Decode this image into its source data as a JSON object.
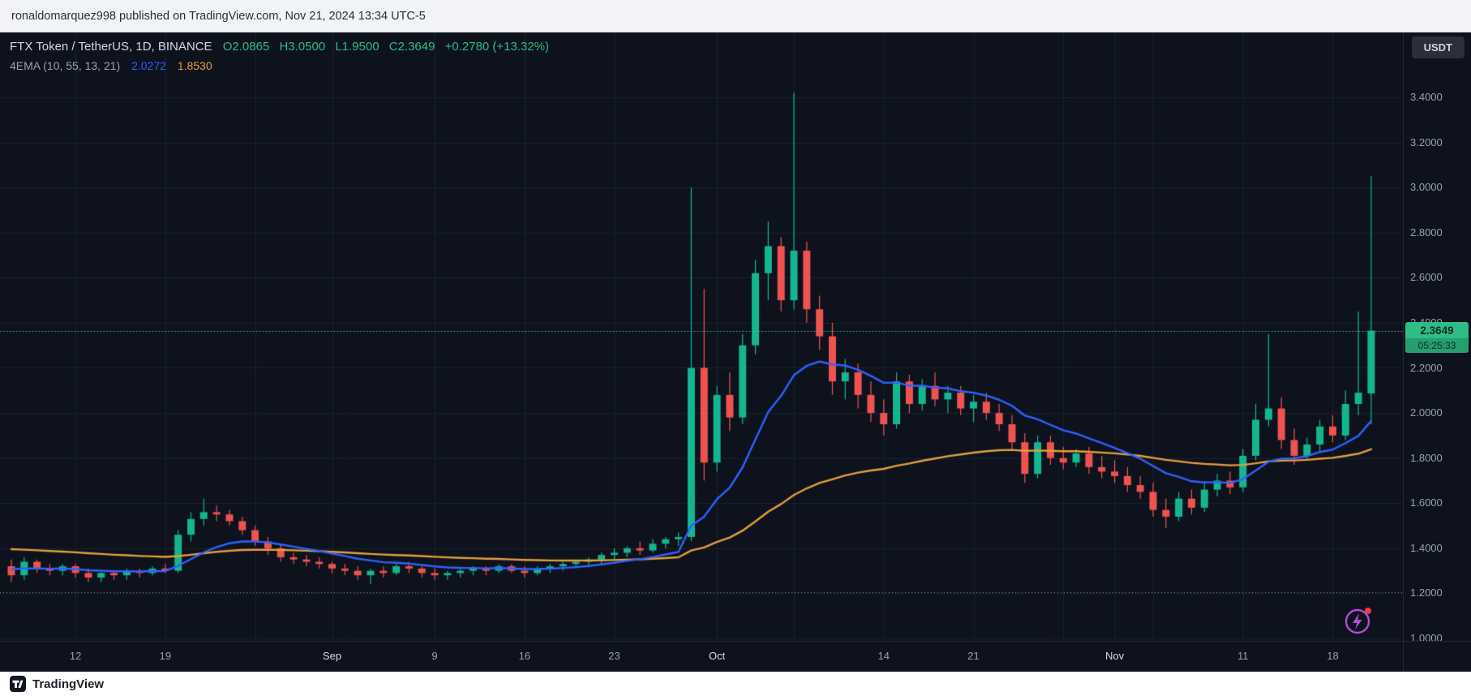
{
  "header": {
    "text": "ronaldomarquez998 published on TradingView.com, Nov 21, 2024 13:34 UTC-5"
  },
  "footer": {
    "brand": "TradingView"
  },
  "toolbar": {
    "currency_button": "USDT"
  },
  "legend": {
    "title": "FTX Token / TetherUS, 1D, BINANCE",
    "ohlc": {
      "o": "O2.0865",
      "h": "H3.0500",
      "l": "L1.9500",
      "c": "C2.3649",
      "change": "+0.2780 (+13.32%)"
    },
    "indicator": {
      "name": "4EMA (10, 55, 13, 21)",
      "fast_value": "2.0272",
      "slow_value": "1.8530"
    }
  },
  "chart_data": {
    "type": "candlestick",
    "title": "FTX Token / TetherUS, 1D, BINANCE",
    "last_price": 2.3649,
    "last_price_label": "2.3649",
    "countdown": "05:25:33",
    "dotted_line": 1.205,
    "ylim": [
      1.0,
      3.4
    ],
    "y_ticks": [
      {
        "v": 3.4,
        "t": "3.4000"
      },
      {
        "v": 3.2,
        "t": "3.2000"
      },
      {
        "v": 3.0,
        "t": "3.0000"
      },
      {
        "v": 2.8,
        "t": "2.8000"
      },
      {
        "v": 2.6,
        "t": "2.6000"
      },
      {
        "v": 2.4,
        "t": "2.4000"
      },
      {
        "v": 2.2,
        "t": "2.2000"
      },
      {
        "v": 2.0,
        "t": "2.0000"
      },
      {
        "v": 1.8,
        "t": "1.8000"
      },
      {
        "v": 1.6,
        "t": "1.6000"
      },
      {
        "v": 1.4,
        "t": "1.4000"
      },
      {
        "v": 1.2,
        "t": "1.2000"
      },
      {
        "v": 1.0,
        "t": "1.0000"
      }
    ],
    "x_ticks": [
      {
        "d": 5,
        "t": "12",
        "major": false
      },
      {
        "d": 12,
        "t": "19",
        "major": false
      },
      {
        "d": 25,
        "t": "Sep",
        "major": true
      },
      {
        "d": 33,
        "t": "9",
        "major": false
      },
      {
        "d": 40,
        "t": "16",
        "major": false
      },
      {
        "d": 47,
        "t": "23",
        "major": false
      },
      {
        "d": 55,
        "t": "Oct",
        "major": true
      },
      {
        "d": 68,
        "t": "14",
        "major": false
      },
      {
        "d": 75,
        "t": "21",
        "major": false
      },
      {
        "d": 86,
        "t": "Nov",
        "major": true
      },
      {
        "d": 96,
        "t": "11",
        "major": false
      },
      {
        "d": 103,
        "t": "18",
        "major": false
      }
    ],
    "x_grid_extra": [
      19,
      61,
      82,
      89
    ],
    "emas": {
      "fast_period": 13,
      "slow_period": 55,
      "fast_seed": 1.31,
      "slow_seed": 1.4
    },
    "colors": {
      "up": "#14b690",
      "down": "#ef5350",
      "fast_ema": "#2f62ff",
      "slow_ema": "#e59e3c",
      "grid": "#1b2130",
      "bg": "#0d121d",
      "dotted": "#8a90a0",
      "badge_bg": "#2ebd85"
    },
    "candles": [
      [
        1.32,
        1.35,
        1.25,
        1.28
      ],
      [
        1.28,
        1.36,
        1.26,
        1.34
      ],
      [
        1.34,
        1.35,
        1.29,
        1.31
      ],
      [
        1.31,
        1.33,
        1.28,
        1.3
      ],
      [
        1.3,
        1.33,
        1.28,
        1.32
      ],
      [
        1.32,
        1.33,
        1.27,
        1.29
      ],
      [
        1.29,
        1.31,
        1.25,
        1.27
      ],
      [
        1.27,
        1.3,
        1.25,
        1.29
      ],
      [
        1.29,
        1.3,
        1.26,
        1.28
      ],
      [
        1.28,
        1.31,
        1.26,
        1.3
      ],
      [
        1.3,
        1.31,
        1.27,
        1.29
      ],
      [
        1.29,
        1.32,
        1.28,
        1.31
      ],
      [
        1.31,
        1.33,
        1.29,
        1.3
      ],
      [
        1.3,
        1.48,
        1.29,
        1.46
      ],
      [
        1.46,
        1.56,
        1.43,
        1.53
      ],
      [
        1.53,
        1.62,
        1.5,
        1.56
      ],
      [
        1.56,
        1.59,
        1.52,
        1.55
      ],
      [
        1.55,
        1.57,
        1.5,
        1.52
      ],
      [
        1.52,
        1.54,
        1.46,
        1.48
      ],
      [
        1.48,
        1.5,
        1.41,
        1.43
      ],
      [
        1.43,
        1.45,
        1.37,
        1.4
      ],
      [
        1.4,
        1.42,
        1.34,
        1.36
      ],
      [
        1.36,
        1.38,
        1.33,
        1.35
      ],
      [
        1.35,
        1.37,
        1.32,
        1.34
      ],
      [
        1.34,
        1.36,
        1.31,
        1.33
      ],
      [
        1.33,
        1.34,
        1.29,
        1.31
      ],
      [
        1.31,
        1.33,
        1.28,
        1.3
      ],
      [
        1.3,
        1.32,
        1.26,
        1.28
      ],
      [
        1.28,
        1.31,
        1.24,
        1.3
      ],
      [
        1.3,
        1.32,
        1.27,
        1.29
      ],
      [
        1.29,
        1.33,
        1.28,
        1.32
      ],
      [
        1.32,
        1.34,
        1.29,
        1.31
      ],
      [
        1.31,
        1.32,
        1.27,
        1.29
      ],
      [
        1.29,
        1.31,
        1.26,
        1.28
      ],
      [
        1.28,
        1.3,
        1.26,
        1.29
      ],
      [
        1.29,
        1.31,
        1.27,
        1.3
      ],
      [
        1.3,
        1.32,
        1.28,
        1.31
      ],
      [
        1.31,
        1.32,
        1.28,
        1.3
      ],
      [
        1.3,
        1.33,
        1.29,
        1.32
      ],
      [
        1.32,
        1.33,
        1.29,
        1.3
      ],
      [
        1.3,
        1.32,
        1.27,
        1.29
      ],
      [
        1.29,
        1.32,
        1.28,
        1.31
      ],
      [
        1.31,
        1.33,
        1.29,
        1.32
      ],
      [
        1.32,
        1.34,
        1.3,
        1.33
      ],
      [
        1.33,
        1.35,
        1.31,
        1.34
      ],
      [
        1.34,
        1.36,
        1.32,
        1.35
      ],
      [
        1.35,
        1.38,
        1.33,
        1.37
      ],
      [
        1.37,
        1.4,
        1.35,
        1.38
      ],
      [
        1.38,
        1.41,
        1.36,
        1.4
      ],
      [
        1.4,
        1.43,
        1.37,
        1.39
      ],
      [
        1.39,
        1.44,
        1.38,
        1.42
      ],
      [
        1.42,
        1.45,
        1.4,
        1.44
      ],
      [
        1.44,
        1.47,
        1.41,
        1.45
      ],
      [
        1.45,
        3.0,
        1.43,
        2.2
      ],
      [
        2.2,
        2.55,
        1.7,
        1.78
      ],
      [
        1.78,
        2.12,
        1.74,
        2.08
      ],
      [
        2.08,
        2.18,
        1.92,
        1.98
      ],
      [
        1.98,
        2.35,
        1.95,
        2.3
      ],
      [
        2.3,
        2.68,
        2.26,
        2.62
      ],
      [
        2.62,
        2.85,
        2.5,
        2.74
      ],
      [
        2.74,
        2.78,
        2.45,
        2.5
      ],
      [
        2.5,
        3.42,
        2.46,
        2.72
      ],
      [
        2.72,
        2.76,
        2.4,
        2.46
      ],
      [
        2.46,
        2.52,
        2.28,
        2.34
      ],
      [
        2.34,
        2.4,
        2.08,
        2.14
      ],
      [
        2.14,
        2.24,
        2.06,
        2.18
      ],
      [
        2.18,
        2.22,
        2.02,
        2.08
      ],
      [
        2.08,
        2.14,
        1.96,
        2.0
      ],
      [
        2.0,
        2.06,
        1.9,
        1.95
      ],
      [
        1.95,
        2.18,
        1.93,
        2.14
      ],
      [
        2.14,
        2.17,
        2.0,
        2.04
      ],
      [
        2.04,
        2.15,
        2.01,
        2.12
      ],
      [
        2.12,
        2.18,
        2.03,
        2.06
      ],
      [
        2.06,
        2.12,
        2.0,
        2.09
      ],
      [
        2.09,
        2.12,
        1.99,
        2.02
      ],
      [
        2.02,
        2.08,
        1.96,
        2.05
      ],
      [
        2.05,
        2.09,
        1.97,
        2.0
      ],
      [
        2.0,
        2.04,
        1.92,
        1.95
      ],
      [
        1.95,
        1.99,
        1.84,
        1.87
      ],
      [
        1.87,
        1.91,
        1.69,
        1.73
      ],
      [
        1.73,
        1.9,
        1.71,
        1.87
      ],
      [
        1.87,
        1.9,
        1.77,
        1.8
      ],
      [
        1.8,
        1.85,
        1.75,
        1.78
      ],
      [
        1.78,
        1.84,
        1.76,
        1.82
      ],
      [
        1.82,
        1.85,
        1.73,
        1.76
      ],
      [
        1.76,
        1.81,
        1.71,
        1.74
      ],
      [
        1.74,
        1.79,
        1.69,
        1.72
      ],
      [
        1.72,
        1.76,
        1.65,
        1.68
      ],
      [
        1.68,
        1.72,
        1.62,
        1.65
      ],
      [
        1.65,
        1.69,
        1.54,
        1.57
      ],
      [
        1.57,
        1.62,
        1.49,
        1.54
      ],
      [
        1.54,
        1.65,
        1.52,
        1.62
      ],
      [
        1.62,
        1.66,
        1.55,
        1.58
      ],
      [
        1.58,
        1.69,
        1.56,
        1.66
      ],
      [
        1.66,
        1.73,
        1.63,
        1.7
      ],
      [
        1.7,
        1.74,
        1.64,
        1.67
      ],
      [
        1.67,
        1.84,
        1.65,
        1.81
      ],
      [
        1.81,
        2.04,
        1.79,
        1.97
      ],
      [
        1.97,
        2.35,
        1.94,
        2.02
      ],
      [
        2.02,
        2.07,
        1.84,
        1.88
      ],
      [
        1.88,
        1.93,
        1.77,
        1.81
      ],
      [
        1.81,
        1.89,
        1.79,
        1.86
      ],
      [
        1.86,
        1.97,
        1.83,
        1.94
      ],
      [
        1.94,
        1.99,
        1.87,
        1.9
      ],
      [
        1.9,
        2.1,
        1.88,
        2.04
      ],
      [
        2.04,
        2.45,
        1.99,
        2.09
      ],
      [
        2.0865,
        3.05,
        1.95,
        2.3649
      ]
    ]
  }
}
